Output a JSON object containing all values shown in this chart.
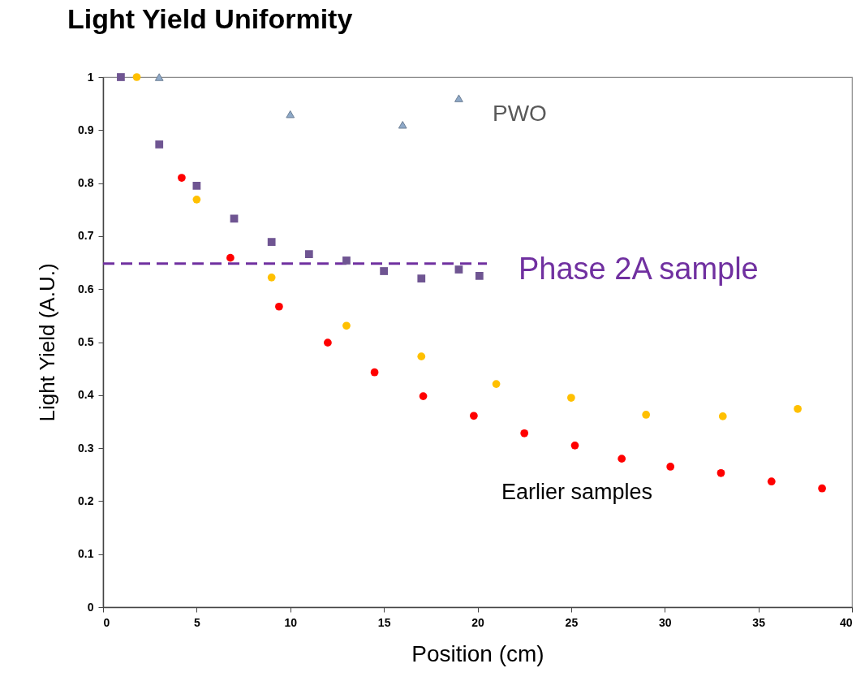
{
  "chart_data": {
    "type": "scatter",
    "title": "Light Yield Uniformity",
    "xlabel": "Position (cm)",
    "ylabel": "Light Yield (A.U.)",
    "xlim": [
      0,
      40
    ],
    "xticks": [
      0,
      5,
      10,
      15,
      20,
      25,
      30,
      35,
      40
    ],
    "ylim": [
      0,
      1
    ],
    "yticks": [
      0,
      0.1,
      0.2,
      0.3,
      0.4,
      0.5,
      0.6,
      0.7,
      0.8,
      0.9,
      1
    ],
    "grid": false,
    "series": [
      {
        "type": "line",
        "color": "#7030a0",
        "line_style": "dashed",
        "marker": "none",
        "x": [
          0,
          20.5
        ],
        "values": [
          0.648,
          0.648
        ]
      },
      {
        "color": "#6f5592",
        "marker": "square",
        "x": [
          0.95,
          3,
          5,
          7,
          9,
          11,
          13,
          15,
          17,
          19,
          20.1
        ],
        "values": [
          1,
          0.873,
          0.795,
          0.733,
          0.689,
          0.666,
          0.654,
          0.634,
          0.62,
          0.637,
          0.625
        ]
      },
      {
        "color": "#ffc000",
        "marker": "circle",
        "x": [
          1.8,
          5,
          9,
          13,
          17,
          21,
          25,
          29,
          33.1,
          37.1
        ],
        "values": [
          1,
          0.769,
          0.622,
          0.531,
          0.473,
          0.421,
          0.395,
          0.363,
          0.36,
          0.374
        ]
      },
      {
        "color": "#ff0000",
        "marker": "circle",
        "x": [
          4.2,
          6.8,
          9.4,
          12,
          14.5,
          17.1,
          19.8,
          22.5,
          25.2,
          27.7,
          30.3,
          33,
          35.7,
          38.4
        ],
        "values": [
          0.81,
          0.659,
          0.567,
          0.499,
          0.443,
          0.398,
          0.361,
          0.328,
          0.305,
          0.28,
          0.265,
          0.253,
          0.237,
          0.224
        ]
      },
      {
        "color": "#8ea9c8",
        "marker": "triangle",
        "x": [
          3,
          10,
          16,
          19
        ],
        "values": [
          1,
          0.93,
          0.91,
          0.96
        ]
      }
    ],
    "annotations": [
      "PWO",
      "Phase 2A sample",
      "Earlier samples"
    ]
  }
}
